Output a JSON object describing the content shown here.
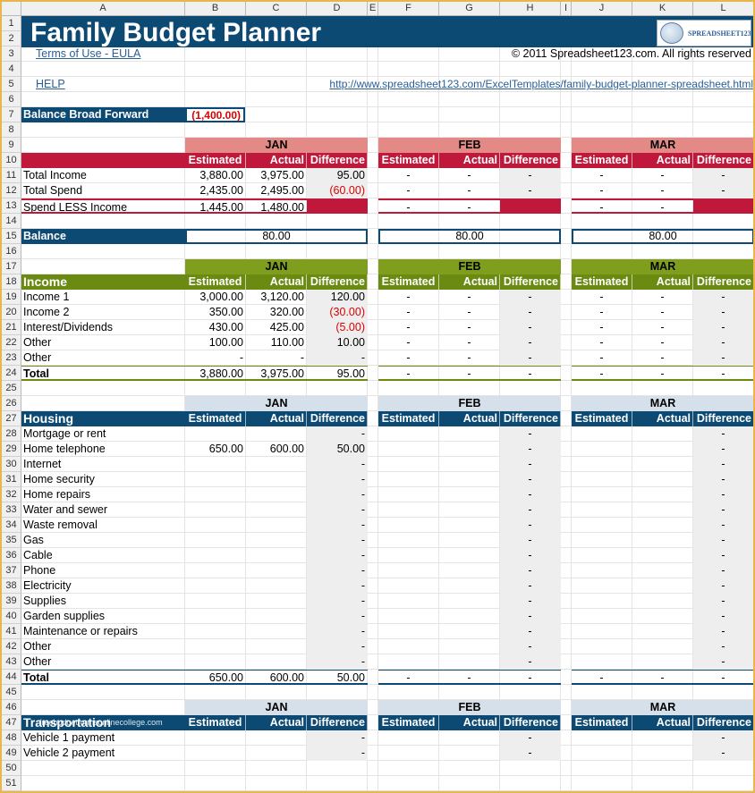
{
  "columns": [
    "A",
    "B",
    "C",
    "D",
    "E",
    "F",
    "G",
    "H",
    "I",
    "J",
    "K",
    "L"
  ],
  "title": "Family Budget Planner",
  "logo_text": "SPREADSHEET123",
  "terms_link": "Terms of Use - EULA",
  "copyright": "© 2011 Spreadsheet123.com. All rights reserved",
  "help_link": "HELP",
  "url_link": "http://www.spreadsheet123.com/ExcelTemplates/family-budget-planner-spreadsheet.html",
  "balance_bf_label": "Balance Broad Forward",
  "balance_bf_value": "(1,400.00)",
  "months": [
    "JAN",
    "FEB",
    "MAR"
  ],
  "col_headers": [
    "Estimated",
    "Actual",
    "Difference"
  ],
  "summary": {
    "rows": [
      {
        "label": "Total Income",
        "jan": [
          "3,880.00",
          "3,975.00",
          "95.00"
        ],
        "feb": [
          "-",
          "-",
          "-"
        ],
        "mar": [
          "-",
          "-",
          "-"
        ]
      },
      {
        "label": "Total Spend",
        "jan": [
          "2,435.00",
          "2,495.00",
          "(60.00)"
        ],
        "feb": [
          "-",
          "-",
          "-"
        ],
        "mar": [
          "-",
          "-",
          "-"
        ]
      },
      {
        "label": "Spend LESS Income",
        "jan": [
          "1,445.00",
          "1,480.00",
          ""
        ],
        "feb": [
          "-",
          "-",
          ""
        ],
        "mar": [
          "-",
          "-",
          ""
        ]
      }
    ],
    "balance_label": "Balance",
    "balance": [
      "80.00",
      "80.00",
      "80.00"
    ]
  },
  "income": {
    "title": "Income",
    "rows": [
      {
        "label": "Income 1",
        "jan": [
          "3,000.00",
          "3,120.00",
          "120.00"
        ],
        "feb": [
          "-",
          "-",
          "-"
        ],
        "mar": [
          "-",
          "-",
          "-"
        ]
      },
      {
        "label": "Income 2",
        "jan": [
          "350.00",
          "320.00",
          "(30.00)"
        ],
        "feb": [
          "-",
          "-",
          "-"
        ],
        "mar": [
          "-",
          "-",
          "-"
        ]
      },
      {
        "label": "Interest/Dividends",
        "jan": [
          "430.00",
          "425.00",
          "(5.00)"
        ],
        "feb": [
          "-",
          "-",
          "-"
        ],
        "mar": [
          "-",
          "-",
          "-"
        ]
      },
      {
        "label": "Other",
        "jan": [
          "100.00",
          "110.00",
          "10.00"
        ],
        "feb": [
          "-",
          "-",
          "-"
        ],
        "mar": [
          "-",
          "-",
          "-"
        ]
      },
      {
        "label": "Other",
        "jan": [
          "-",
          "-",
          "-"
        ],
        "feb": [
          "-",
          "-",
          "-"
        ],
        "mar": [
          "-",
          "-",
          "-"
        ]
      }
    ],
    "total_label": "Total",
    "total": {
      "jan": [
        "3,880.00",
        "3,975.00",
        "95.00"
      ],
      "feb": [
        "-",
        "-",
        "-"
      ],
      "mar": [
        "-",
        "-",
        "-"
      ]
    }
  },
  "housing": {
    "title": "Housing",
    "rows": [
      {
        "label": "Mortgage or rent",
        "jan": [
          "",
          "",
          "-"
        ],
        "feb": [
          "",
          "",
          "-"
        ],
        "mar": [
          "",
          "",
          "-"
        ]
      },
      {
        "label": "Home telephone",
        "jan": [
          "650.00",
          "600.00",
          "50.00"
        ],
        "feb": [
          "",
          "",
          "-"
        ],
        "mar": [
          "",
          "",
          "-"
        ]
      },
      {
        "label": "Internet",
        "jan": [
          "",
          "",
          "-"
        ],
        "feb": [
          "",
          "",
          "-"
        ],
        "mar": [
          "",
          "",
          "-"
        ]
      },
      {
        "label": "Home security",
        "jan": [
          "",
          "",
          "-"
        ],
        "feb": [
          "",
          "",
          "-"
        ],
        "mar": [
          "",
          "",
          "-"
        ]
      },
      {
        "label": "Home repairs",
        "jan": [
          "",
          "",
          "-"
        ],
        "feb": [
          "",
          "",
          "-"
        ],
        "mar": [
          "",
          "",
          "-"
        ]
      },
      {
        "label": "Water and sewer",
        "jan": [
          "",
          "",
          "-"
        ],
        "feb": [
          "",
          "",
          "-"
        ],
        "mar": [
          "",
          "",
          "-"
        ]
      },
      {
        "label": "Waste removal",
        "jan": [
          "",
          "",
          "-"
        ],
        "feb": [
          "",
          "",
          "-"
        ],
        "mar": [
          "",
          "",
          "-"
        ]
      },
      {
        "label": "Gas",
        "jan": [
          "",
          "",
          "-"
        ],
        "feb": [
          "",
          "",
          "-"
        ],
        "mar": [
          "",
          "",
          "-"
        ]
      },
      {
        "label": "Cable",
        "jan": [
          "",
          "",
          "-"
        ],
        "feb": [
          "",
          "",
          "-"
        ],
        "mar": [
          "",
          "",
          "-"
        ]
      },
      {
        "label": "Phone",
        "jan": [
          "",
          "",
          "-"
        ],
        "feb": [
          "",
          "",
          "-"
        ],
        "mar": [
          "",
          "",
          "-"
        ]
      },
      {
        "label": "Electricity",
        "jan": [
          "",
          "",
          "-"
        ],
        "feb": [
          "",
          "",
          "-"
        ],
        "mar": [
          "",
          "",
          "-"
        ]
      },
      {
        "label": "Supplies",
        "jan": [
          "",
          "",
          "-"
        ],
        "feb": [
          "",
          "",
          "-"
        ],
        "mar": [
          "",
          "",
          "-"
        ]
      },
      {
        "label": "Garden supplies",
        "jan": [
          "",
          "",
          "-"
        ],
        "feb": [
          "",
          "",
          "-"
        ],
        "mar": [
          "",
          "",
          "-"
        ]
      },
      {
        "label": "Maintenance or repairs",
        "jan": [
          "",
          "",
          "-"
        ],
        "feb": [
          "",
          "",
          "-"
        ],
        "mar": [
          "",
          "",
          "-"
        ]
      },
      {
        "label": "Other",
        "jan": [
          "",
          "",
          "-"
        ],
        "feb": [
          "",
          "",
          "-"
        ],
        "mar": [
          "",
          "",
          "-"
        ]
      },
      {
        "label": "Other",
        "jan": [
          "",
          "",
          "-"
        ],
        "feb": [
          "",
          "",
          "-"
        ],
        "mar": [
          "",
          "",
          "-"
        ]
      }
    ],
    "total_label": "Total",
    "total": {
      "jan": [
        "650.00",
        "600.00",
        "50.00"
      ],
      "feb": [
        "-",
        "-",
        "-"
      ],
      "mar": [
        "-",
        "-",
        "-"
      ]
    }
  },
  "transportation": {
    "title": "Transportation",
    "watermark": "freebudgetformsonlinecollege.com",
    "rows": [
      {
        "label": "Vehicle 1 payment",
        "jan": [
          "",
          "",
          "-"
        ],
        "feb": [
          "",
          "",
          "-"
        ],
        "mar": [
          "",
          "",
          "-"
        ]
      },
      {
        "label": "Vehicle 2 payment",
        "jan": [
          "",
          "",
          "-"
        ],
        "feb": [
          "",
          "",
          "-"
        ],
        "mar": [
          "",
          "",
          "-"
        ]
      }
    ]
  },
  "colors": {
    "navy": "#0d4a73",
    "crimson": "#c0183a",
    "salmon": "#e38a86",
    "olive": "#6a8a12",
    "olive_light": "#7f9e1e",
    "steel_light": "#d6e0ea",
    "diff_grey": "#eeeeee",
    "negative": "#dd0000"
  }
}
